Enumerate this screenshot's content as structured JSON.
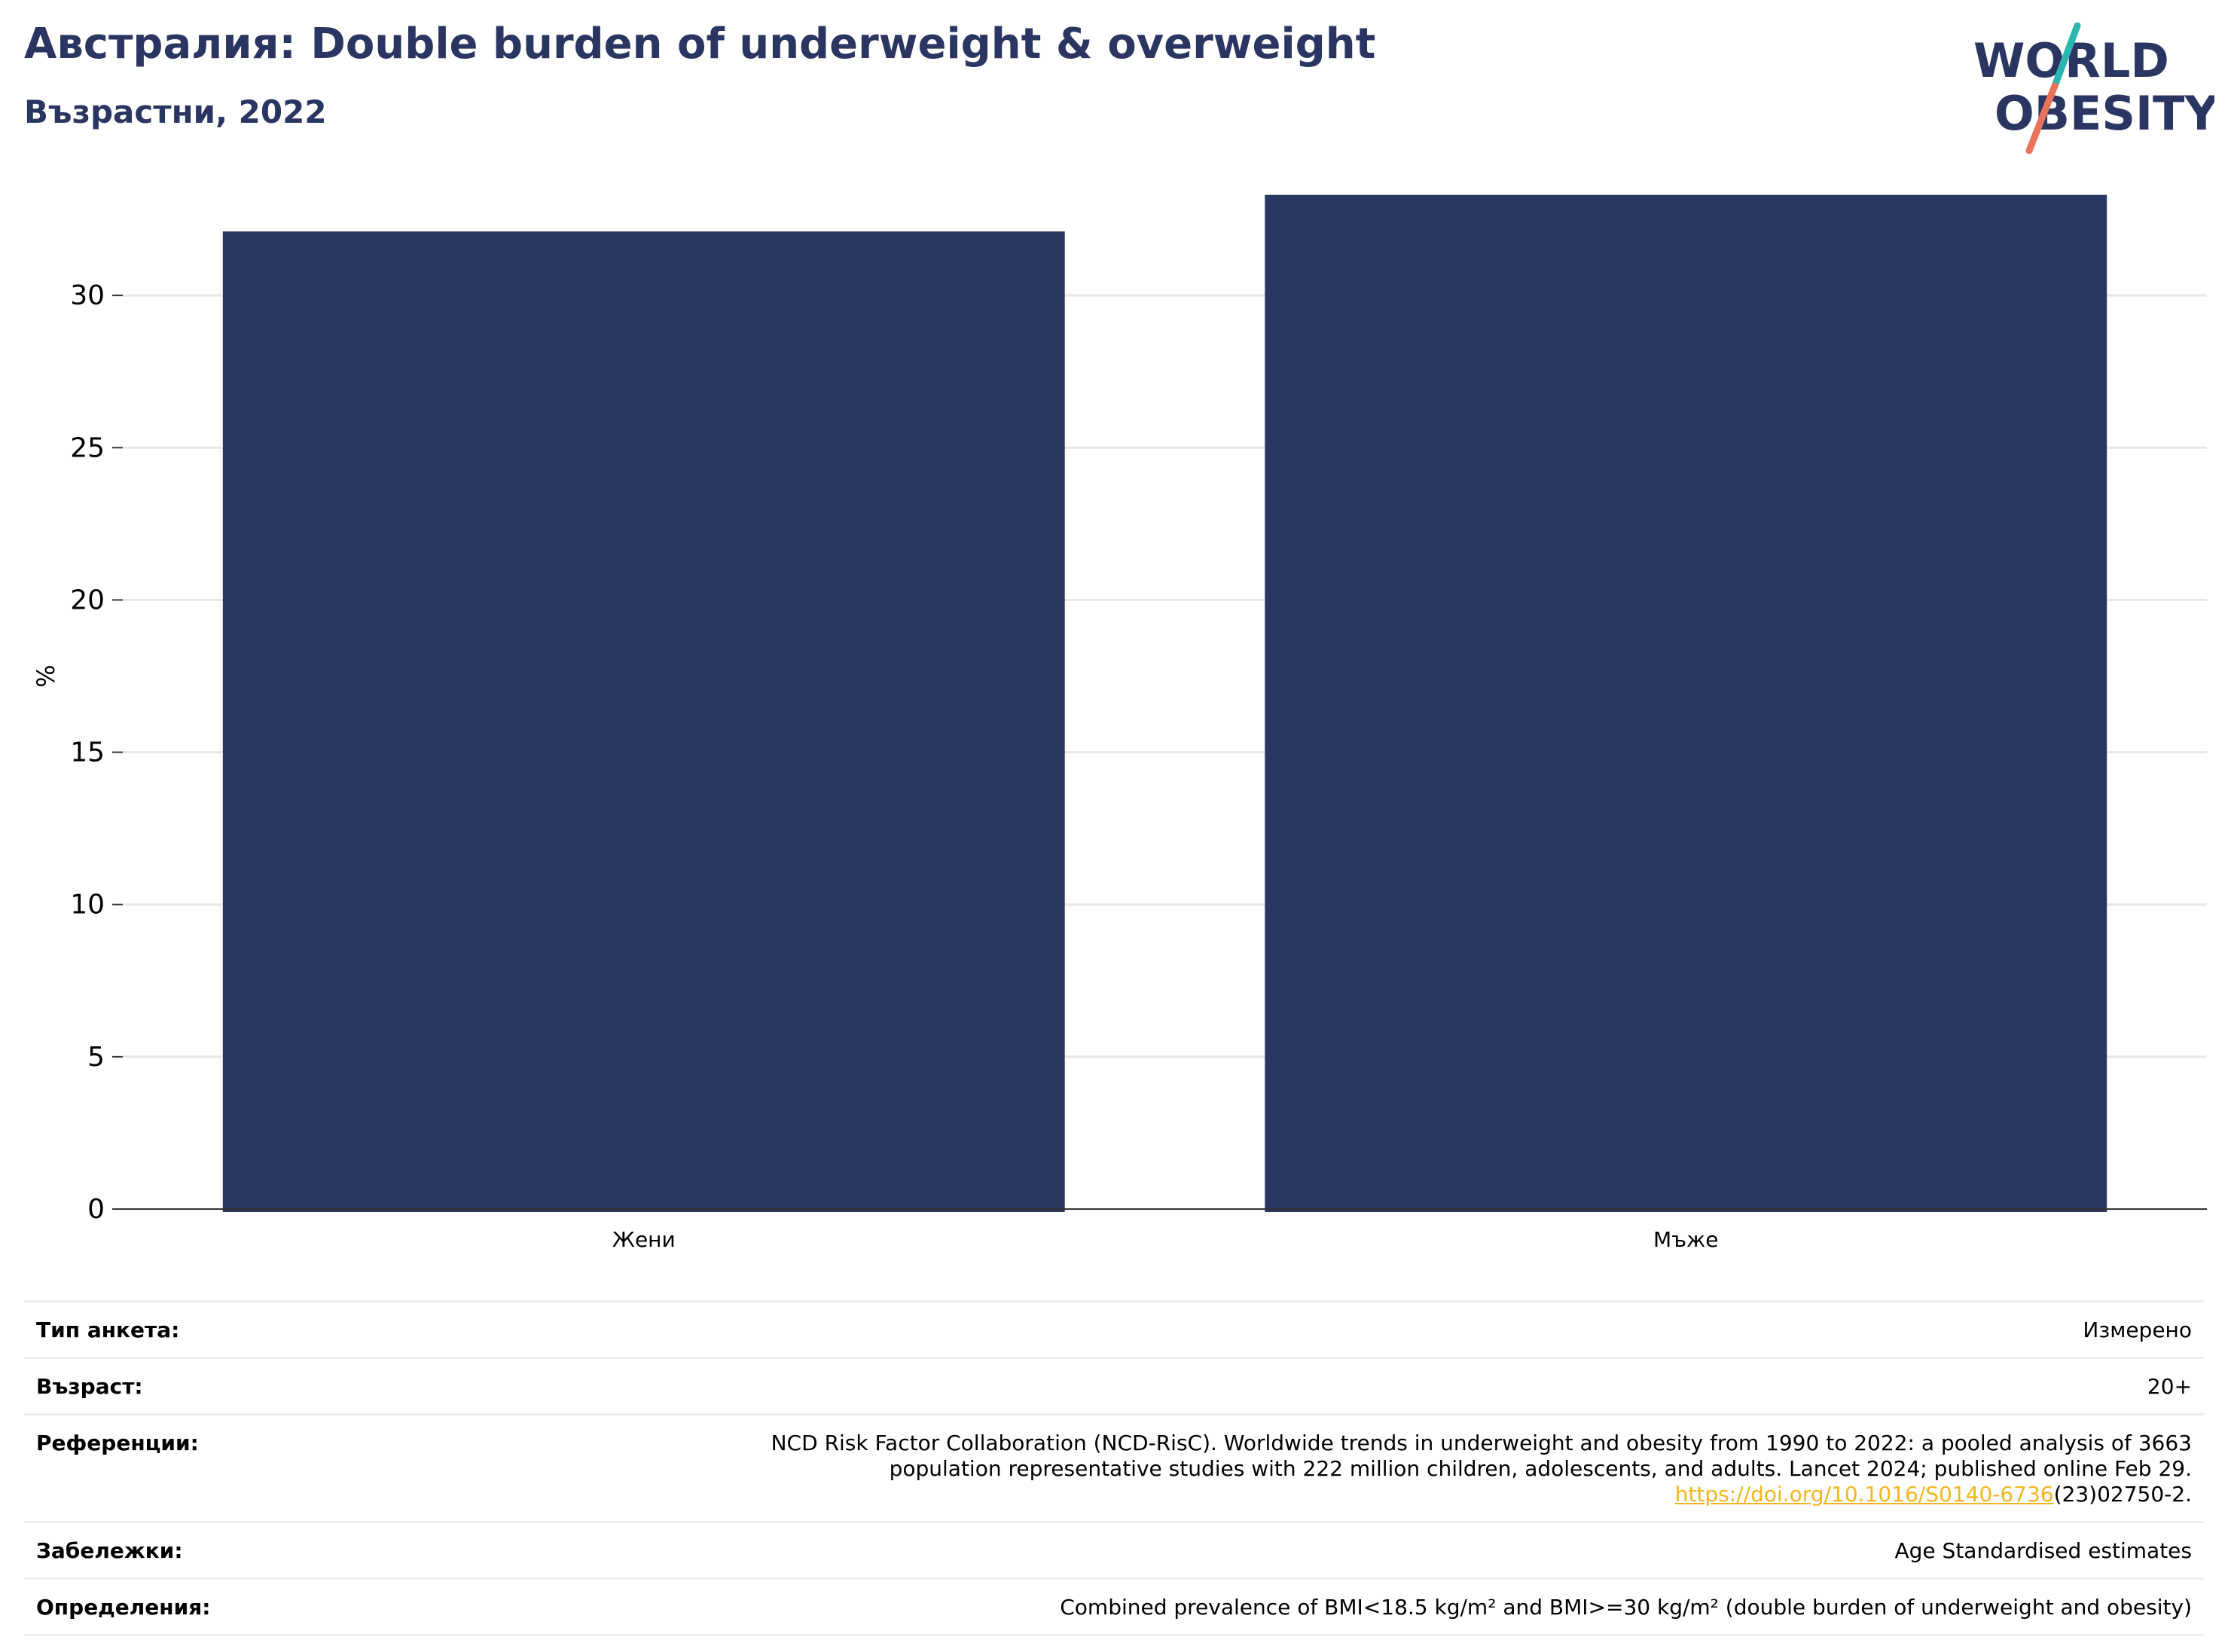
{
  "header": {
    "title": "Австралия: Double burden of underweight & overweight",
    "subtitle": "Възрастни, 2022"
  },
  "logo": {
    "line1": "WORLD",
    "line2": "OBESITY",
    "colors": {
      "text": "#2a3561",
      "teal": "#2bb5b0",
      "coral": "#e8735a"
    }
  },
  "chart_data": {
    "type": "bar",
    "categories": [
      "Жени",
      "Мъже"
    ],
    "values": [
      32.1,
      33.3
    ],
    "title": "",
    "xlabel": "",
    "ylabel": "%",
    "ylim": [
      0,
      35
    ],
    "yticks": [
      0,
      5,
      10,
      15,
      20,
      25,
      30
    ],
    "grid": true,
    "bar_color": "#2b3763"
  },
  "meta": {
    "survey": {
      "label": "Тип анкета:",
      "value": "Измерено"
    },
    "age": {
      "label": "Възраст:",
      "value": "20+"
    },
    "references": {
      "label": "Референции:",
      "line1": "NCD Risk Factor Collaboration (NCD-RisC). Worldwide trends in underweight and obesity from 1990 to 2022: a pooled analysis of 3663",
      "line2": "population representative studies with 222 million children, adolescents, and adults. Lancet 2024; published online Feb 29.",
      "link": "https://doi.org/10.1016/S0140-6736",
      "link_suffix": "(23)02750-2."
    },
    "notes": {
      "label": "Забележки:",
      "value": "Age Standardised estimates"
    },
    "definitions": {
      "label": "Определения:",
      "value": "Combined prevalence of BMI<18.5 kg/m² and BMI>=30 kg/m² (double burden of underweight and obesity)"
    }
  }
}
